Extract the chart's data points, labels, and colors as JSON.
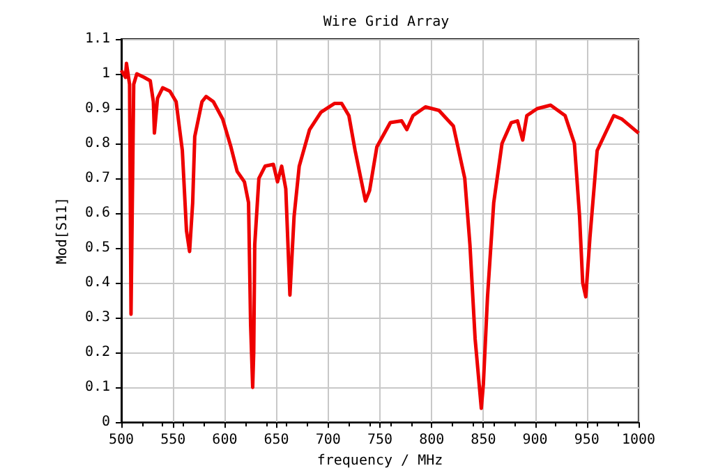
{
  "chart_data": {
    "type": "line",
    "title": "Wire Grid Array",
    "xlabel": "frequency / MHz",
    "ylabel": "Mod[S11]",
    "xlim": [
      500,
      1000
    ],
    "xticks": [
      500,
      550,
      600,
      650,
      700,
      750,
      800,
      850,
      900,
      950,
      1000
    ],
    "ylim": [
      0,
      1.1
    ],
    "yticks": [
      0,
      0.1,
      0.2,
      0.3,
      0.4,
      0.5,
      0.6,
      0.7,
      0.8,
      0.9,
      1,
      1.1
    ],
    "grid": true,
    "marker": "none",
    "line_style": "solid",
    "series": [
      {
        "color": "#ee0000",
        "x": [
          500,
          504,
          505,
          508,
          509.4,
          512,
          515,
          522,
          528,
          531,
          532,
          535,
          540,
          547,
          553,
          559,
          563,
          566,
          569,
          571,
          578,
          582,
          589,
          598,
          606,
          612,
          619,
          623,
          625,
          627,
          628,
          629,
          633,
          639,
          647,
          651,
          655,
          659,
          663,
          667,
          672,
          682,
          693,
          706,
          713,
          720,
          726,
          736,
          740,
          747,
          760,
          771,
          776,
          782,
          794,
          807,
          821,
          832,
          837,
          842,
          848,
          850,
          854,
          860,
          868,
          877,
          883,
          888,
          892,
          902,
          915,
          929,
          938,
          943,
          946,
          949,
          953,
          960,
          968,
          976,
          984,
          992,
          1000
        ],
        "values": [
          1.01,
          0.99,
          1.03,
          0.97,
          0.31,
          0.97,
          1.0,
          0.99,
          0.98,
          0.92,
          0.83,
          0.93,
          0.96,
          0.95,
          0.92,
          0.78,
          0.55,
          0.49,
          0.63,
          0.82,
          0.92,
          0.935,
          0.92,
          0.87,
          0.79,
          0.72,
          0.69,
          0.63,
          0.28,
          0.1,
          0.2,
          0.51,
          0.7,
          0.735,
          0.74,
          0.69,
          0.735,
          0.67,
          0.365,
          0.59,
          0.735,
          0.84,
          0.89,
          0.915,
          0.915,
          0.88,
          0.78,
          0.635,
          0.665,
          0.79,
          0.86,
          0.865,
          0.84,
          0.88,
          0.905,
          0.895,
          0.85,
          0.7,
          0.51,
          0.24,
          0.04,
          0.11,
          0.36,
          0.63,
          0.8,
          0.86,
          0.865,
          0.81,
          0.88,
          0.9,
          0.91,
          0.88,
          0.8,
          0.59,
          0.4,
          0.36,
          0.53,
          0.78,
          0.83,
          0.88,
          0.87,
          0.85,
          0.83
        ]
      }
    ]
  }
}
